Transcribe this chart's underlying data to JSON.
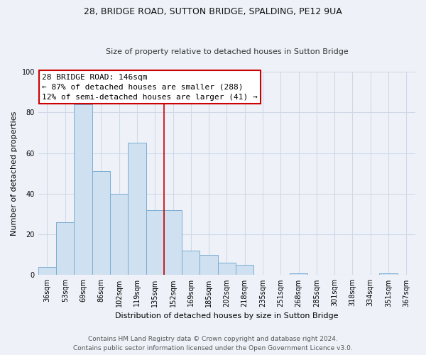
{
  "title": "28, BRIDGE ROAD, SUTTON BRIDGE, SPALDING, PE12 9UA",
  "subtitle": "Size of property relative to detached houses in Sutton Bridge",
  "xlabel": "Distribution of detached houses by size in Sutton Bridge",
  "ylabel": "Number of detached properties",
  "bar_color": "#cfe0f0",
  "bar_edge_color": "#7aadd4",
  "background_color": "#eef2f8",
  "plot_bg_color": "#eef2f8",
  "annotation_box_color": "#ffffff",
  "annotation_border_color": "#cc0000",
  "vline_color": "#cc0000",
  "annotation_text_line1": "28 BRIDGE ROAD: 146sqm",
  "annotation_text_line2": "← 87% of detached houses are smaller (288)",
  "annotation_text_line3": "12% of semi-detached houses are larger (41) →",
  "bins": [
    "36sqm",
    "53sqm",
    "69sqm",
    "86sqm",
    "102sqm",
    "119sqm",
    "135sqm",
    "152sqm",
    "169sqm",
    "185sqm",
    "202sqm",
    "218sqm",
    "235sqm",
    "251sqm",
    "268sqm",
    "285sqm",
    "301sqm",
    "318sqm",
    "334sqm",
    "351sqm",
    "367sqm"
  ],
  "values": [
    4,
    26,
    84,
    51,
    40,
    65,
    32,
    32,
    12,
    10,
    6,
    5,
    0,
    0,
    1,
    0,
    0,
    0,
    0,
    1,
    0
  ],
  "ylim": [
    0,
    100
  ],
  "yticks": [
    0,
    20,
    40,
    60,
    80,
    100
  ],
  "footer_line1": "Contains HM Land Registry data © Crown copyright and database right 2024.",
  "footer_line2": "Contains public sector information licensed under the Open Government Licence v3.0.",
  "grid_color": "#d0d8e8",
  "title_fontsize": 9,
  "subtitle_fontsize": 8,
  "ylabel_fontsize": 8,
  "xlabel_fontsize": 8,
  "tick_fontsize": 7,
  "annotation_fontsize": 8,
  "footer_fontsize": 6.5
}
